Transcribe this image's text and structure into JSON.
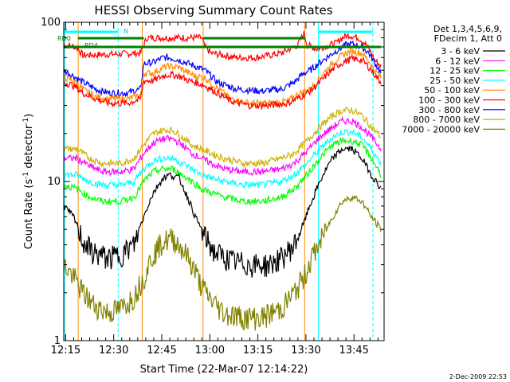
{
  "chart_data": {
    "type": "line",
    "title": "HESSI Observing Summary Count Rates",
    "xlabel": "Start Time (22-Mar-07 12:14:22)",
    "ylabel_main": "Count Rate (s",
    "ylabel_sup1": "-1",
    "ylabel_mid": " detector",
    "ylabel_sup2": "-1",
    "ylabel_end": ")",
    "y_scale": "log",
    "ylim": [
      1,
      100
    ],
    "xlim_minutes": [
      0,
      100
    ],
    "x_ticks": [
      "12:15",
      "12:30",
      "12:45",
      "13:00",
      "13:15",
      "13:30",
      "13:45"
    ],
    "x_tick_minutes": [
      0.6,
      15.6,
      30.6,
      45.6,
      60.6,
      75.6,
      90.6
    ],
    "y_ticks": [
      "1",
      "10",
      "100"
    ],
    "legend_header": [
      "Det 1,3,4,5,6,9,",
      "FDecim 1, Att 0"
    ],
    "legend_position": "right",
    "series": [
      {
        "name": "3 - 6 keV",
        "color": "#000000"
      },
      {
        "name": "6 - 12 keV",
        "color": "#ff00ff"
      },
      {
        "name": "12 - 25 keV",
        "color": "#00ff00"
      },
      {
        "name": "25 - 50 keV",
        "color": "#00ffff"
      },
      {
        "name": "50 - 100 keV",
        "color": "#ff8c00"
      },
      {
        "name": "100 - 300 keV",
        "color": "#ff0000"
      },
      {
        "name": "300 - 800 keV",
        "color": "#0000ff"
      },
      {
        "name": "800 - 7000 keV",
        "color": "#cdb000"
      },
      {
        "name": "7000 - 20000 keV",
        "color": "#808000"
      }
    ],
    "curves": [
      {
        "color": "#ff0000",
        "points": [
          [
            0,
            72
          ],
          [
            4,
            70
          ],
          [
            6,
            62
          ],
          [
            15,
            63
          ],
          [
            24,
            64
          ],
          [
            25,
            72
          ],
          [
            26,
            80
          ],
          [
            40,
            80
          ],
          [
            43,
            80
          ],
          [
            44,
            70
          ],
          [
            46,
            64
          ],
          [
            54,
            60
          ],
          [
            60,
            60
          ],
          [
            68,
            64
          ],
          [
            73,
            72
          ],
          [
            75,
            85
          ],
          [
            76,
            72
          ],
          [
            79,
            68
          ],
          [
            85,
            74
          ],
          [
            87,
            80
          ],
          [
            89,
            83
          ],
          [
            92,
            80
          ],
          [
            94,
            74
          ],
          [
            96,
            64
          ],
          [
            97,
            58
          ],
          [
            99,
            53
          ]
        ]
      },
      {
        "color": "#0000ff",
        "points": [
          [
            0,
            50
          ],
          [
            3,
            46
          ],
          [
            6,
            42
          ],
          [
            10,
            38
          ],
          [
            14,
            36
          ],
          [
            20,
            36
          ],
          [
            24,
            38
          ],
          [
            25,
            55
          ],
          [
            28,
            56
          ],
          [
            31,
            60
          ],
          [
            33,
            60
          ],
          [
            36,
            58
          ],
          [
            39,
            55
          ],
          [
            41,
            53
          ],
          [
            44,
            50
          ],
          [
            48,
            42
          ],
          [
            54,
            38
          ],
          [
            62,
            37
          ],
          [
            68,
            38
          ],
          [
            72,
            42
          ],
          [
            75,
            48
          ],
          [
            77,
            50
          ],
          [
            80,
            56
          ],
          [
            85,
            66
          ],
          [
            88,
            72
          ],
          [
            90,
            73
          ],
          [
            93,
            70
          ],
          [
            95,
            65
          ],
          [
            97,
            56
          ],
          [
            99,
            48
          ]
        ]
      },
      {
        "color": "#ff8c00",
        "points": [
          [
            0,
            45
          ],
          [
            3,
            43
          ],
          [
            6,
            38
          ],
          [
            10,
            34
          ],
          [
            14,
            33
          ],
          [
            20,
            33
          ],
          [
            24,
            35
          ],
          [
            25,
            48
          ],
          [
            28,
            48
          ],
          [
            31,
            52
          ],
          [
            33,
            53
          ],
          [
            36,
            52
          ],
          [
            39,
            48
          ],
          [
            41,
            46
          ],
          [
            44,
            45
          ],
          [
            47,
            40
          ],
          [
            52,
            33
          ],
          [
            58,
            31
          ],
          [
            64,
            31
          ],
          [
            70,
            32
          ],
          [
            74,
            36
          ],
          [
            77,
            38
          ],
          [
            80,
            45
          ],
          [
            85,
            58
          ],
          [
            88,
            64
          ],
          [
            90,
            66
          ],
          [
            93,
            64
          ],
          [
            95,
            58
          ],
          [
            97,
            50
          ],
          [
            99,
            45
          ]
        ]
      },
      {
        "color": "#ff0000",
        "points": [
          [
            0,
            42
          ],
          [
            3,
            40
          ],
          [
            6,
            36
          ],
          [
            10,
            33
          ],
          [
            14,
            31
          ],
          [
            20,
            31
          ],
          [
            24,
            33
          ],
          [
            25,
            43
          ],
          [
            28,
            43
          ],
          [
            31,
            46
          ],
          [
            33,
            47
          ],
          [
            36,
            46
          ],
          [
            39,
            43
          ],
          [
            41,
            42
          ],
          [
            44,
            40
          ],
          [
            47,
            37
          ],
          [
            52,
            32
          ],
          [
            58,
            30
          ],
          [
            64,
            30
          ],
          [
            70,
            31
          ],
          [
            74,
            34
          ],
          [
            77,
            37
          ],
          [
            80,
            42
          ],
          [
            85,
            53
          ],
          [
            88,
            57
          ],
          [
            90,
            59
          ],
          [
            93,
            58
          ],
          [
            95,
            53
          ],
          [
            97,
            47
          ],
          [
            99,
            42
          ]
        ]
      },
      {
        "color": "#cdb000",
        "points": [
          [
            0,
            16
          ],
          [
            4,
            16
          ],
          [
            8,
            14
          ],
          [
            12,
            13
          ],
          [
            18,
            13
          ],
          [
            22,
            14
          ],
          [
            25,
            17
          ],
          [
            28,
            20
          ],
          [
            31,
            21
          ],
          [
            34,
            21
          ],
          [
            37,
            19
          ],
          [
            40,
            17
          ],
          [
            43,
            16
          ],
          [
            46,
            15
          ],
          [
            50,
            14
          ],
          [
            56,
            13
          ],
          [
            62,
            13
          ],
          [
            68,
            14
          ],
          [
            72,
            15
          ],
          [
            76,
            18
          ],
          [
            80,
            22
          ],
          [
            84,
            26
          ],
          [
            87,
            28
          ],
          [
            90,
            28
          ],
          [
            93,
            26
          ],
          [
            96,
            22
          ],
          [
            99,
            19
          ]
        ]
      },
      {
        "color": "#ff00ff",
        "points": [
          [
            0,
            14
          ],
          [
            4,
            14
          ],
          [
            8,
            12.5
          ],
          [
            12,
            11.5
          ],
          [
            18,
            11.5
          ],
          [
            22,
            12
          ],
          [
            25,
            15
          ],
          [
            28,
            17.5
          ],
          [
            31,
            18.5
          ],
          [
            34,
            18.5
          ],
          [
            37,
            17
          ],
          [
            40,
            15
          ],
          [
            43,
            14
          ],
          [
            46,
            13
          ],
          [
            50,
            12
          ],
          [
            56,
            11.5
          ],
          [
            62,
            11.5
          ],
          [
            68,
            12
          ],
          [
            72,
            13
          ],
          [
            76,
            15.5
          ],
          [
            80,
            19
          ],
          [
            84,
            22
          ],
          [
            87,
            24
          ],
          [
            90,
            24
          ],
          [
            93,
            22
          ],
          [
            96,
            19
          ],
          [
            99,
            16
          ]
        ]
      },
      {
        "color": "#00ffff",
        "points": [
          [
            0,
            11
          ],
          [
            4,
            11
          ],
          [
            8,
            10
          ],
          [
            12,
            9.5
          ],
          [
            18,
            9.5
          ],
          [
            22,
            10
          ],
          [
            25,
            12
          ],
          [
            28,
            13.5
          ],
          [
            31,
            14
          ],
          [
            34,
            14
          ],
          [
            37,
            13
          ],
          [
            40,
            12
          ],
          [
            43,
            11
          ],
          [
            46,
            10.5
          ],
          [
            50,
            10
          ],
          [
            56,
            9.5
          ],
          [
            62,
            9.5
          ],
          [
            68,
            10
          ],
          [
            72,
            11
          ],
          [
            76,
            13
          ],
          [
            80,
            16
          ],
          [
            84,
            19
          ],
          [
            87,
            20.5
          ],
          [
            90,
            20.5
          ],
          [
            93,
            19
          ],
          [
            96,
            16
          ],
          [
            99,
            13
          ]
        ]
      },
      {
        "color": "#00ff00",
        "points": [
          [
            0,
            9.5
          ],
          [
            4,
            9
          ],
          [
            8,
            8
          ],
          [
            12,
            7.5
          ],
          [
            18,
            7.5
          ],
          [
            22,
            8
          ],
          [
            25,
            10
          ],
          [
            28,
            11.5
          ],
          [
            31,
            12
          ],
          [
            34,
            12
          ],
          [
            37,
            11
          ],
          [
            40,
            10
          ],
          [
            43,
            9
          ],
          [
            46,
            8.5
          ],
          [
            50,
            8
          ],
          [
            56,
            7.5
          ],
          [
            62,
            7.5
          ],
          [
            68,
            8
          ],
          [
            72,
            9
          ],
          [
            76,
            11
          ],
          [
            80,
            14
          ],
          [
            84,
            17
          ],
          [
            87,
            18
          ],
          [
            90,
            18
          ],
          [
            93,
            17
          ],
          [
            96,
            14
          ],
          [
            99,
            11
          ]
        ]
      },
      {
        "color": "#000000",
        "points": [
          [
            0,
            7
          ],
          [
            3,
            6
          ],
          [
            6,
            4.2
          ],
          [
            9,
            3.6
          ],
          [
            14,
            3.3
          ],
          [
            18,
            3.5
          ],
          [
            22,
            4
          ],
          [
            25,
            6
          ],
          [
            28,
            8.5
          ],
          [
            31,
            10.5
          ],
          [
            33,
            11
          ],
          [
            36,
            10.5
          ],
          [
            38,
            8.5
          ],
          [
            41,
            6
          ],
          [
            44,
            4.5
          ],
          [
            47,
            3.6
          ],
          [
            52,
            3.2
          ],
          [
            58,
            3
          ],
          [
            64,
            3
          ],
          [
            68,
            3.3
          ],
          [
            72,
            4
          ],
          [
            75,
            5.5
          ],
          [
            78,
            8
          ],
          [
            81,
            11
          ],
          [
            84,
            14
          ],
          [
            87,
            16
          ],
          [
            90,
            16
          ],
          [
            93,
            14
          ],
          [
            96,
            11
          ],
          [
            99,
            9
          ]
        ]
      },
      {
        "color": "#808000",
        "points": [
          [
            0,
            3
          ],
          [
            3,
            2.5
          ],
          [
            6,
            2
          ],
          [
            9,
            1.7
          ],
          [
            14,
            1.5
          ],
          [
            18,
            1.6
          ],
          [
            22,
            1.9
          ],
          [
            25,
            2.5
          ],
          [
            28,
            3.5
          ],
          [
            31,
            4.2
          ],
          [
            34,
            4.4
          ],
          [
            37,
            3.8
          ],
          [
            40,
            3
          ],
          [
            43,
            2.2
          ],
          [
            46,
            1.8
          ],
          [
            50,
            1.5
          ],
          [
            56,
            1.4
          ],
          [
            62,
            1.4
          ],
          [
            68,
            1.6
          ],
          [
            72,
            2
          ],
          [
            75,
            2.5
          ],
          [
            78,
            3.5
          ],
          [
            81,
            4.5
          ],
          [
            84,
            6
          ],
          [
            87,
            7.5
          ],
          [
            90,
            8
          ],
          [
            93,
            7.5
          ],
          [
            96,
            6
          ],
          [
            99,
            5
          ]
        ]
      }
    ],
    "band_labels": [
      "RD0",
      "RD4",
      "N"
    ],
    "footer_date": "2-Dec-2009 22:53"
  }
}
